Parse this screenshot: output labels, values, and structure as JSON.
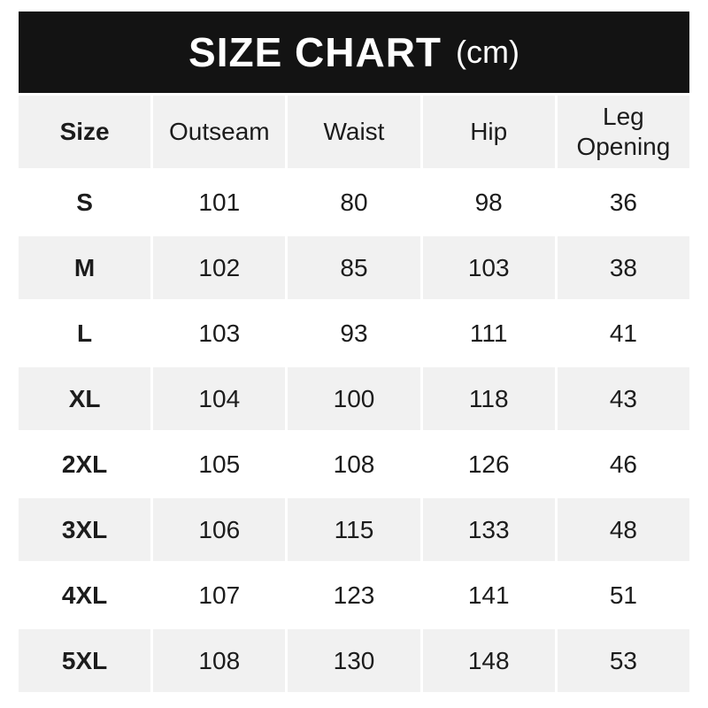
{
  "banner": {
    "title": "SIZE CHART",
    "unit": "(cm)"
  },
  "colors": {
    "banner_bg": "#131313",
    "banner_text": "#ffffff",
    "alt_row_bg": "#f1f1f1",
    "text": "#1c1c1c"
  },
  "chart_data": {
    "type": "table",
    "title": "SIZE CHART",
    "unit": "(cm)",
    "columns": [
      "Size",
      "Outseam",
      "Waist",
      "Hip",
      "Leg Opening"
    ],
    "rows": [
      {
        "size": "S",
        "values": [
          101,
          80,
          98,
          36
        ]
      },
      {
        "size": "M",
        "values": [
          102,
          85,
          103,
          38
        ]
      },
      {
        "size": "L",
        "values": [
          103,
          93,
          111,
          41
        ]
      },
      {
        "size": "XL",
        "values": [
          104,
          100,
          118,
          43
        ]
      },
      {
        "size": "2XL",
        "values": [
          105,
          108,
          126,
          46
        ]
      },
      {
        "size": "3XL",
        "values": [
          106,
          115,
          133,
          48
        ]
      },
      {
        "size": "4XL",
        "values": [
          107,
          123,
          141,
          51
        ]
      },
      {
        "size": "5XL",
        "values": [
          108,
          130,
          148,
          53
        ]
      }
    ]
  }
}
